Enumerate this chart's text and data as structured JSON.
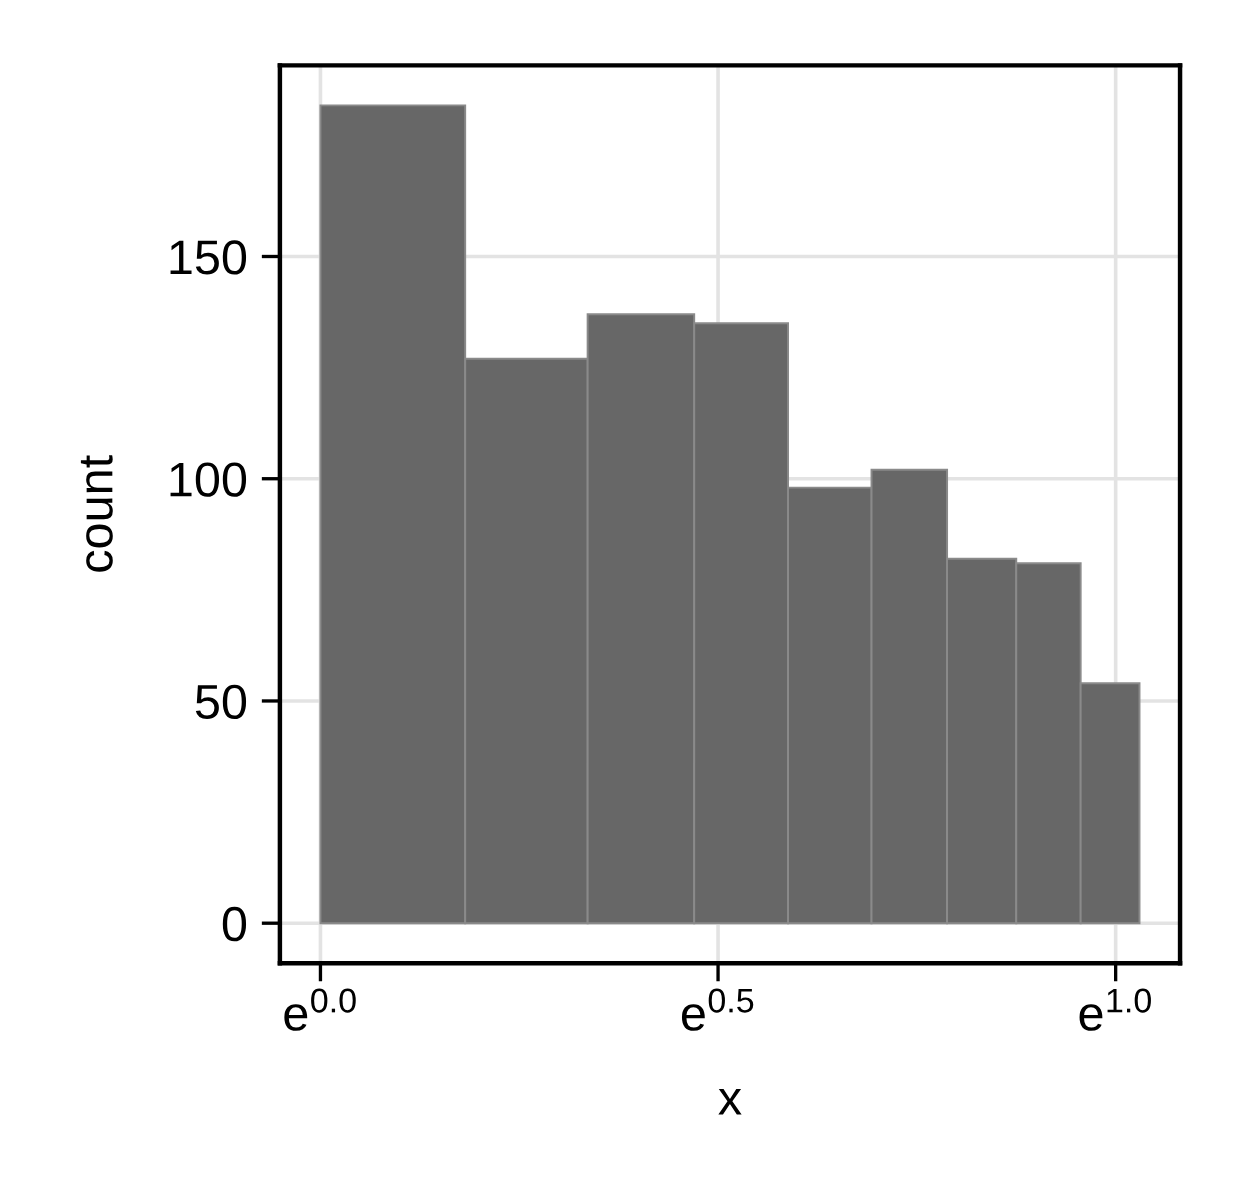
{
  "chart_data": {
    "type": "histogram",
    "xlabel": "x",
    "ylabel": "count",
    "bins": [
      0,
      0.182,
      0.336,
      0.47,
      0.588,
      0.693,
      0.788,
      0.875,
      0.956,
      1.03
    ],
    "values": [
      184,
      127,
      137,
      135,
      98,
      102,
      82,
      81,
      54
    ],
    "color": "#676767",
    "xlim": [
      -0.051,
      1.081
    ],
    "xticks": [
      {
        "value": 0,
        "label": "e$^{0.0}$"
      },
      {
        "value": 0.5,
        "label": "e$^{0.5}$"
      },
      {
        "value": 1.0,
        "label": "e$^{1.0}$"
      }
    ],
    "ylim": [
      -9,
      193
    ],
    "yticks": [
      0,
      50,
      100,
      150
    ],
    "grid": true
  }
}
